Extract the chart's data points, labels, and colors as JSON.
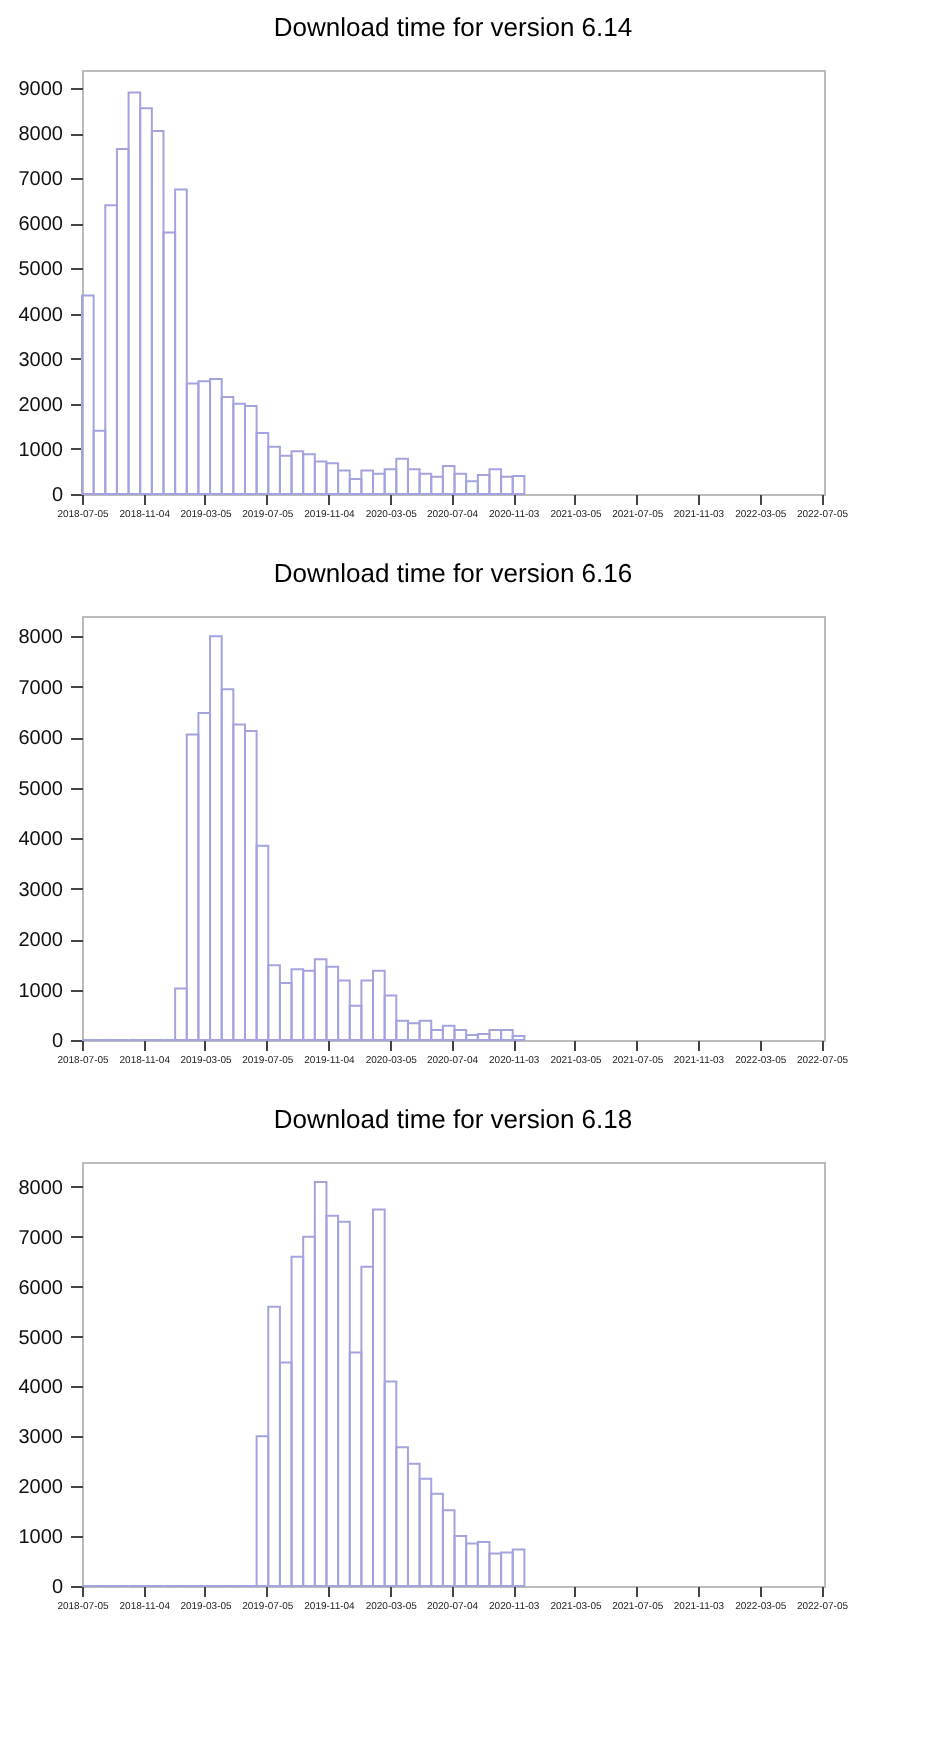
{
  "chart_data": [
    {
      "type": "histogram",
      "title": "Download time for version 6.14",
      "color": "#a3a3e0",
      "bins": [
        "2018-07-05",
        "2018-07-28",
        "2018-08-20",
        "2018-09-12",
        "2018-10-05",
        "2018-10-28",
        "2018-11-20",
        "2018-12-13",
        "2019-01-05",
        "2019-01-28",
        "2019-02-20",
        "2019-03-15",
        "2019-04-07",
        "2019-04-30",
        "2019-05-23",
        "2019-06-15",
        "2019-07-08",
        "2019-07-31",
        "2019-08-23",
        "2019-09-15",
        "2019-10-08",
        "2019-10-31",
        "2019-11-23",
        "2019-12-16",
        "2020-01-08",
        "2020-01-31",
        "2020-02-23",
        "2020-03-17",
        "2020-04-09",
        "2020-05-02",
        "2020-05-25",
        "2020-06-17",
        "2020-07-10",
        "2020-08-02",
        "2020-08-25",
        "2020-09-17",
        "2020-10-10",
        "2020-11-02",
        "2020-11-25"
      ],
      "values": [
        4400,
        1400,
        6400,
        7650,
        8900,
        8550,
        8050,
        5800,
        6750,
        2450,
        2500,
        2550,
        2150,
        2000,
        1950,
        1350,
        1050,
        850,
        950,
        880,
        720,
        680,
        520,
        330,
        520,
        450,
        550,
        780,
        550,
        450,
        380,
        620,
        450,
        280,
        420,
        550,
        380,
        400
      ],
      "xlim": [
        "2018-07-05",
        "2022-07-10"
      ],
      "xticks": [
        "2018-07-05",
        "2018-11-04",
        "2019-03-05",
        "2019-07-05",
        "2019-11-04",
        "2020-03-05",
        "2020-07-04",
        "2020-11-03",
        "2021-03-05",
        "2021-07-05",
        "2021-11-03",
        "2022-03-05",
        "2022-07-05"
      ],
      "ylim": [
        0,
        9400
      ],
      "yticks": [
        0,
        1000,
        2000,
        3000,
        4000,
        5000,
        6000,
        7000,
        8000,
        9000
      ]
    },
    {
      "type": "histogram",
      "title": "Download time for version 6.16",
      "color": "#a3a3e0",
      "bins": [
        "2018-07-05",
        "2018-07-28",
        "2018-08-20",
        "2018-09-12",
        "2018-10-05",
        "2018-10-28",
        "2018-11-20",
        "2018-12-13",
        "2019-01-05",
        "2019-01-28",
        "2019-02-20",
        "2019-03-15",
        "2019-04-07",
        "2019-04-30",
        "2019-05-23",
        "2019-06-15",
        "2019-07-08",
        "2019-07-31",
        "2019-08-23",
        "2019-09-15",
        "2019-10-08",
        "2019-10-31",
        "2019-11-23",
        "2019-12-16",
        "2020-01-08",
        "2020-01-31",
        "2020-02-23",
        "2020-03-17",
        "2020-04-09",
        "2020-05-02",
        "2020-05-25",
        "2020-06-17",
        "2020-07-10",
        "2020-08-02",
        "2020-08-25",
        "2020-09-17",
        "2020-10-10",
        "2020-11-02",
        "2020-11-25"
      ],
      "values": [
        0,
        0,
        0,
        0,
        0,
        0,
        0,
        0,
        1020,
        6050,
        6480,
        8000,
        6950,
        6250,
        6120,
        3850,
        1480,
        1130,
        1400,
        1370,
        1600,
        1450,
        1180,
        680,
        1180,
        1370,
        880,
        380,
        330,
        380,
        200,
        280,
        200,
        100,
        120,
        200,
        200,
        80
      ],
      "xlim": [
        "2018-07-05",
        "2022-07-10"
      ],
      "xticks": [
        "2018-07-05",
        "2018-11-04",
        "2019-03-05",
        "2019-07-05",
        "2019-11-04",
        "2020-03-05",
        "2020-07-04",
        "2020-11-03",
        "2021-03-05",
        "2021-07-05",
        "2021-11-03",
        "2022-03-05",
        "2022-07-05"
      ],
      "ylim": [
        0,
        8400
      ],
      "yticks": [
        0,
        1000,
        2000,
        3000,
        4000,
        5000,
        6000,
        7000,
        8000
      ]
    },
    {
      "type": "histogram",
      "title": "Download time for version 6.18",
      "color": "#a3a3e0",
      "bins": [
        "2018-07-05",
        "2018-07-28",
        "2018-08-20",
        "2018-09-12",
        "2018-10-05",
        "2018-10-28",
        "2018-11-20",
        "2018-12-13",
        "2019-01-05",
        "2019-01-28",
        "2019-02-20",
        "2019-03-15",
        "2019-04-07",
        "2019-04-30",
        "2019-05-23",
        "2019-06-15",
        "2019-07-08",
        "2019-07-31",
        "2019-08-23",
        "2019-09-15",
        "2019-10-08",
        "2019-10-31",
        "2019-11-23",
        "2019-12-16",
        "2020-01-08",
        "2020-01-31",
        "2020-02-23",
        "2020-03-17",
        "2020-04-09",
        "2020-05-02",
        "2020-05-25",
        "2020-06-17",
        "2020-07-10",
        "2020-08-02",
        "2020-08-25",
        "2020-09-17",
        "2020-10-10",
        "2020-11-02",
        "2020-11-25"
      ],
      "values": [
        0,
        0,
        0,
        0,
        0,
        0,
        0,
        0,
        0,
        0,
        0,
        0,
        0,
        0,
        0,
        3000,
        5600,
        4480,
        6600,
        7000,
        8100,
        7420,
        7300,
        4680,
        6400,
        7550,
        4100,
        2780,
        2450,
        2150,
        1850,
        1520,
        1000,
        850,
        880,
        650,
        670,
        730
      ],
      "xlim": [
        "2018-07-05",
        "2022-07-10"
      ],
      "xticks": [
        "2018-07-05",
        "2018-11-04",
        "2019-03-05",
        "2019-07-05",
        "2019-11-04",
        "2020-03-05",
        "2020-07-04",
        "2020-11-03",
        "2021-03-05",
        "2021-07-05",
        "2021-11-03",
        "2022-03-05",
        "2022-07-05"
      ],
      "ylim": [
        0,
        8500
      ],
      "yticks": [
        0,
        1000,
        2000,
        3000,
        4000,
        5000,
        6000,
        7000,
        8000
      ]
    }
  ]
}
